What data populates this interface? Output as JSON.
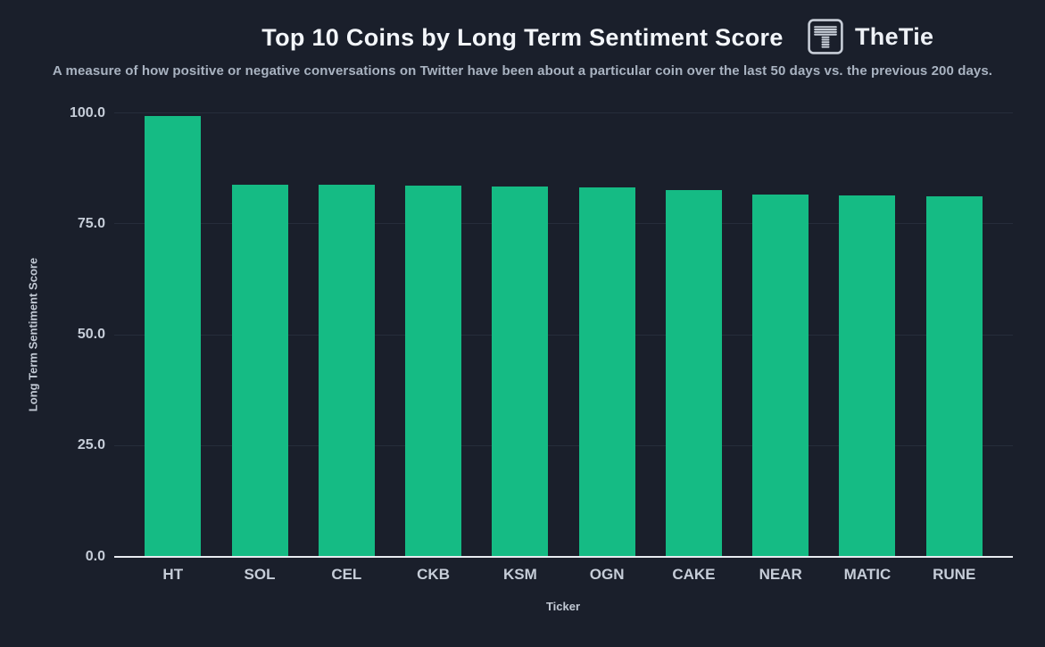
{
  "header": {
    "title": "Top 10 Coins by Long Term Sentiment Score",
    "brand": "TheTie",
    "subtitle": "A measure of how positive or negative conversations on Twitter have been about a particular coin over the last 50 days vs. the previous 200 days."
  },
  "colors": {
    "background": "#1a1f2b",
    "bar": "#15bb84",
    "gridline": "#262d3b",
    "axis_line": "#e8ebf0",
    "title_text": "#f3f6fa",
    "subtitle_text": "#a9b3c1",
    "tick_text": "#c6cdd8",
    "logo": "#c7cdd7"
  },
  "icons": {
    "brand_logo": "thetie-logo-icon"
  },
  "chart_data": {
    "type": "bar",
    "title": "Top 10 Coins by Long Term Sentiment Score",
    "xlabel": "Ticker",
    "ylabel": "Long Term Sentiment Score",
    "categories": [
      "HT",
      "SOL",
      "CEL",
      "CKB",
      "KSM",
      "OGN",
      "CAKE",
      "NEAR",
      "MATIC",
      "RUNE"
    ],
    "values": [
      99.3,
      83.8,
      83.8,
      83.6,
      83.4,
      83.2,
      82.6,
      81.6,
      81.4,
      81.3
    ],
    "ylim": [
      0,
      100
    ],
    "yticks": [
      0,
      25,
      50,
      75,
      100
    ],
    "ytick_labels": [
      "0.0",
      "25.0",
      "50.0",
      "75.0",
      "100.0"
    ],
    "grid": "horizontal",
    "legend": "none",
    "bar_color": "#15bb84"
  }
}
